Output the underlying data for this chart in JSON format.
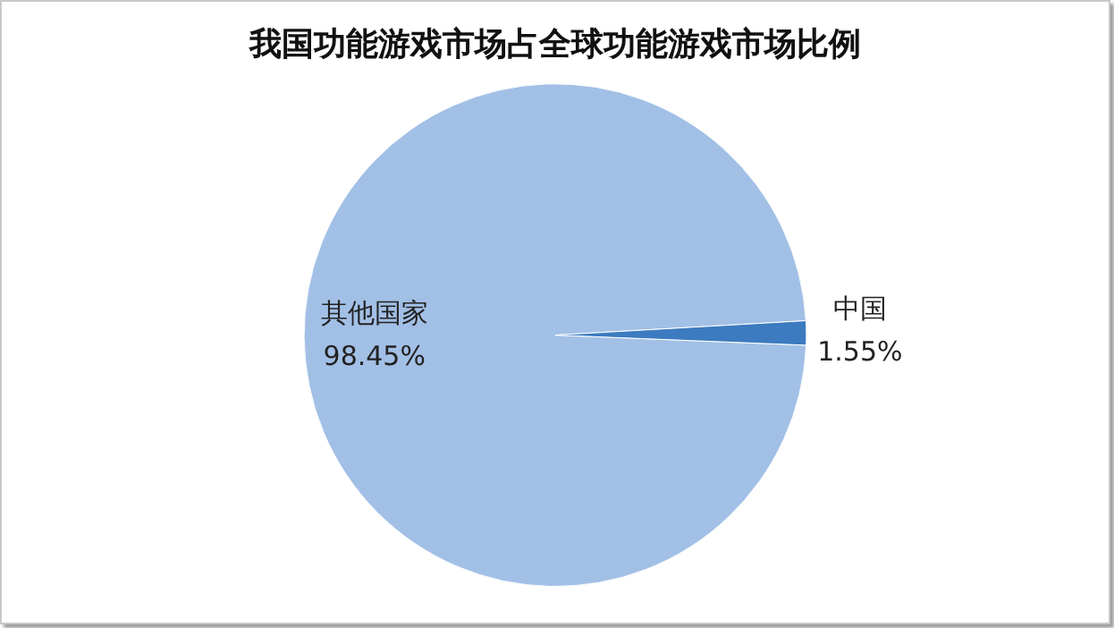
{
  "chart_data": {
    "type": "pie",
    "title": "我国功能游戏市场占全球功能游戏市场比例",
    "categories": [
      "其他国家",
      "中国"
    ],
    "values": [
      98.45,
      1.55
    ],
    "colors": [
      "#a2c0e6",
      "#3c7bc0"
    ],
    "value_labels": [
      "98.45%",
      "1.55%"
    ],
    "legend": false
  }
}
